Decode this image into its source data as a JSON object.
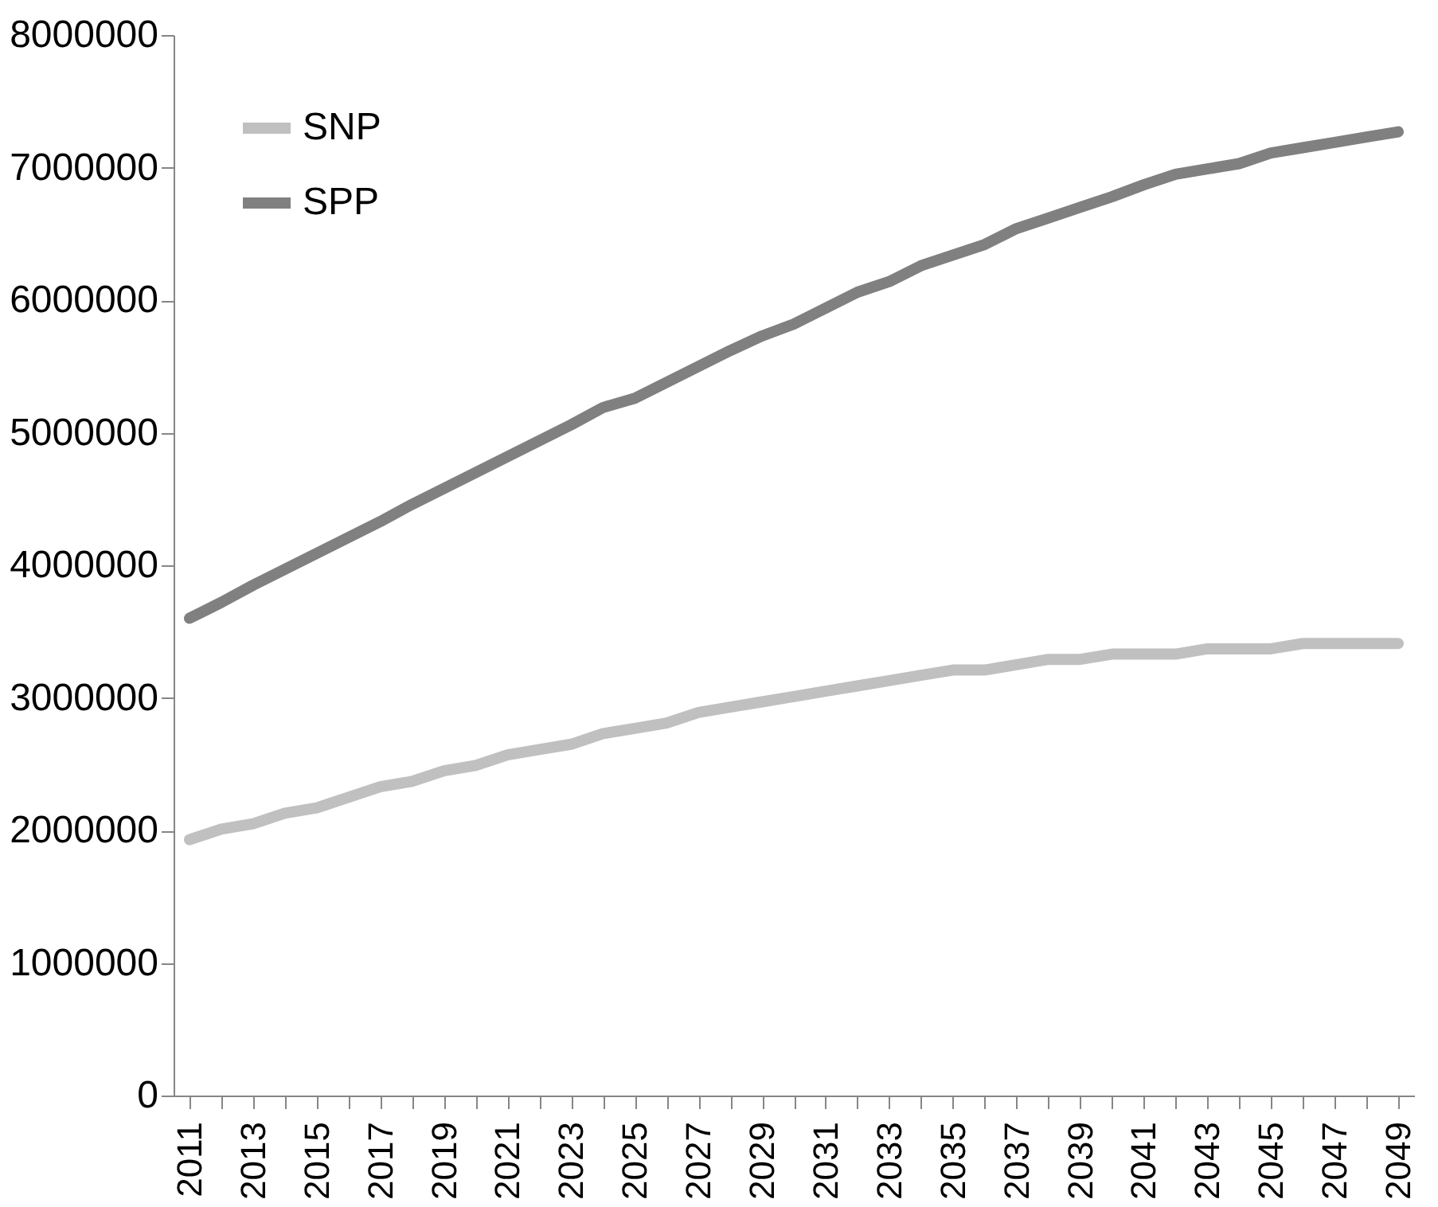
{
  "chart_data": {
    "type": "line",
    "categories": [
      "2011",
      null,
      "2013",
      null,
      "2015",
      null,
      "2017",
      null,
      "2019",
      null,
      "2021",
      null,
      "2023",
      null,
      "2025",
      null,
      "2027",
      null,
      "2029",
      null,
      "2031",
      null,
      "2033",
      null,
      "2035",
      null,
      "2037",
      null,
      "2039",
      null,
      "2041",
      null,
      "2043",
      null,
      "2045",
      null,
      "2047",
      null,
      "2049"
    ],
    "series": [
      {
        "name": "SNP",
        "color": "#c0c0c0",
        "values": [
          1930000,
          2010000,
          2050000,
          2130000,
          2170000,
          2250000,
          2330000,
          2370000,
          2450000,
          2490000,
          2570000,
          2610000,
          2650000,
          2730000,
          2770000,
          2810000,
          2890000,
          2930000,
          2970000,
          3010000,
          3050000,
          3090000,
          3130000,
          3170000,
          3210000,
          3210000,
          3250000,
          3290000,
          3290000,
          3330000,
          3330000,
          3330000,
          3370000,
          3370000,
          3370000,
          3410000,
          3410000,
          3410000,
          3410000
        ]
      },
      {
        "name": "SPP",
        "color": "#808080",
        "values": [
          3600000,
          3720000,
          3850000,
          3970000,
          4090000,
          4210000,
          4330000,
          4460000,
          4580000,
          4700000,
          4820000,
          4940000,
          5060000,
          5190000,
          5260000,
          5380000,
          5500000,
          5620000,
          5730000,
          5820000,
          5940000,
          6060000,
          6140000,
          6260000,
          6340000,
          6420000,
          6540000,
          6620000,
          6700000,
          6780000,
          6870000,
          6950000,
          6990000,
          7030000,
          7110000,
          7150000,
          7190000,
          7230000,
          7270000
        ]
      }
    ],
    "ylim": [
      0,
      8000000
    ],
    "yticks": [
      0,
      1000000,
      2000000,
      3000000,
      4000000,
      5000000,
      6000000,
      7000000,
      8000000
    ],
    "grid": false,
    "legend": "top left",
    "line_style": "solid",
    "marker": "none"
  }
}
